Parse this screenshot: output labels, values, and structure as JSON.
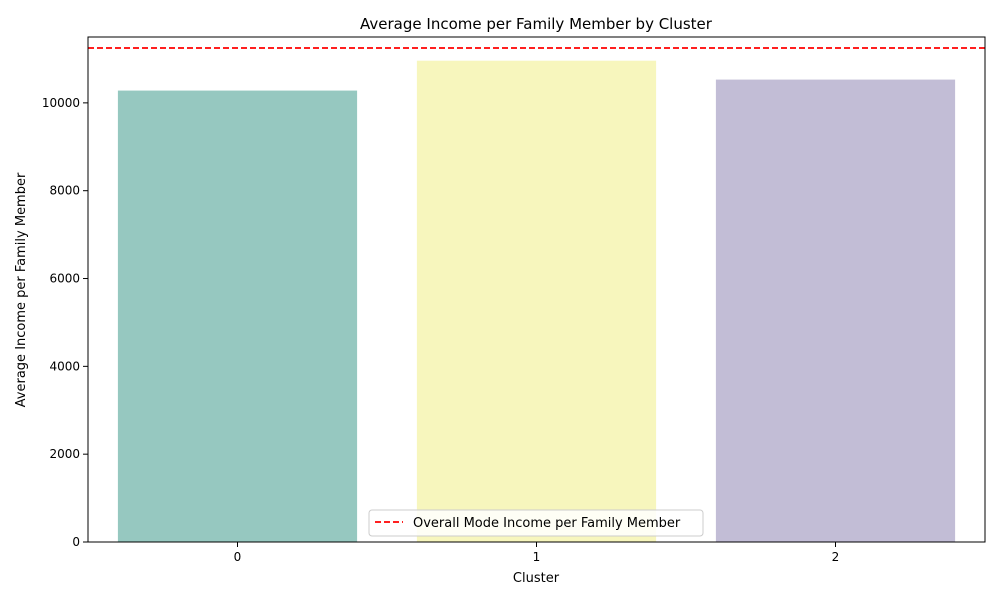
{
  "chart_data": {
    "type": "bar",
    "title": "Average Income per Family Member by Cluster",
    "xlabel": "Cluster",
    "ylabel": "Average Income per Family Member",
    "categories": [
      "0",
      "1",
      "2"
    ],
    "values": [
      10280,
      10960,
      10530
    ],
    "colors": [
      "#96c8c0",
      "#f7f6bd",
      "#c2bdd6"
    ],
    "ylim": [
      0,
      11500
    ],
    "yticks": [
      0,
      2000,
      4000,
      6000,
      8000,
      10000
    ],
    "reference_line": {
      "label": "Overall Mode Income per Family Member",
      "value": 11250,
      "color": "#ff0000",
      "style": "dashed"
    },
    "legend": {
      "placement": "lower-center"
    },
    "grid": false
  }
}
